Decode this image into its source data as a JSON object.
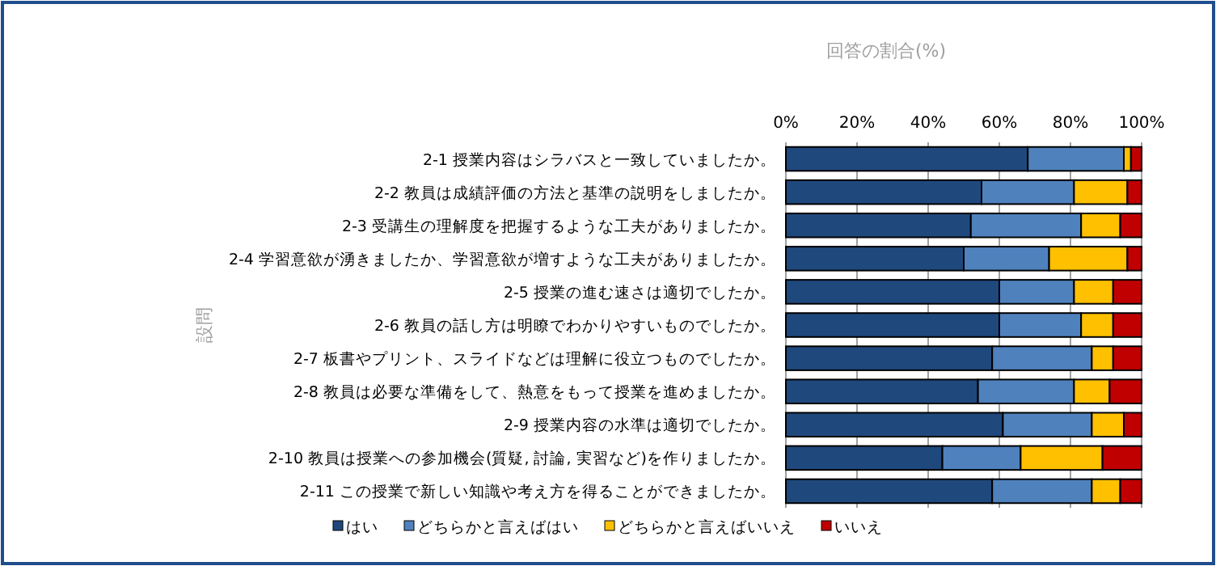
{
  "chart_data": {
    "type": "bar",
    "orientation": "horizontal",
    "stacked": true,
    "xlabel": "回答の割合(%)",
    "ylabel": "設問",
    "categories": [
      "2-1  授業内容はシラバスと一致していましたか。",
      "2-2  教員は成績評価の方法と基準の説明をしましたか。",
      "2-3  受講生の理解度を把握するような工夫がありましたか。",
      "2-4  学習意欲が湧きましたか、学習意欲が増すような工夫がありましたか。",
      "2-5  授業の進む速さは適切でしたか。",
      "2-6  教員の話し方は明瞭でわかりやすいものでしたか。",
      "2-7  板書やプリント、スライドなどは理解に役立つものでしたか。",
      "2-8  教員は必要な準備をして、熱意をもって授業を進めましたか。",
      "2-9  授業内容の水準は適切でしたか。",
      "2-10 教員は授業への参加機会(質疑, 討論, 実習など)を作りましたか。",
      "2-11 この授業で新しい知識や考え方を得ることができましたか。"
    ],
    "series": [
      {
        "name": "はい",
        "color": "#1f497d",
        "values": [
          68,
          55,
          52,
          50,
          60,
          60,
          58,
          54,
          61,
          44,
          58
        ]
      },
      {
        "name": "どちらかと言えばはい",
        "color": "#4f81bd",
        "values": [
          27,
          26,
          31,
          24,
          21,
          23,
          28,
          27,
          25,
          22,
          28
        ]
      },
      {
        "name": "どちらかと言えばいいえ",
        "color": "#ffc000",
        "values": [
          2,
          15,
          11,
          22,
          11,
          9,
          6,
          10,
          9,
          23,
          8
        ]
      },
      {
        "name": "いいえ",
        "color": "#c00000",
        "values": [
          3,
          4,
          6,
          4,
          8,
          8,
          8,
          9,
          5,
          11,
          6
        ]
      }
    ],
    "xlim": [
      0,
      100
    ],
    "xticks": [
      {
        "value": 0,
        "label": "0%"
      },
      {
        "value": 20,
        "label": "20%"
      },
      {
        "value": 40,
        "label": "40%"
      },
      {
        "value": 60,
        "label": "60%"
      },
      {
        "value": 80,
        "label": "80%"
      },
      {
        "value": 100,
        "label": "100%"
      }
    ],
    "grid": "x",
    "legend": "bottom"
  }
}
